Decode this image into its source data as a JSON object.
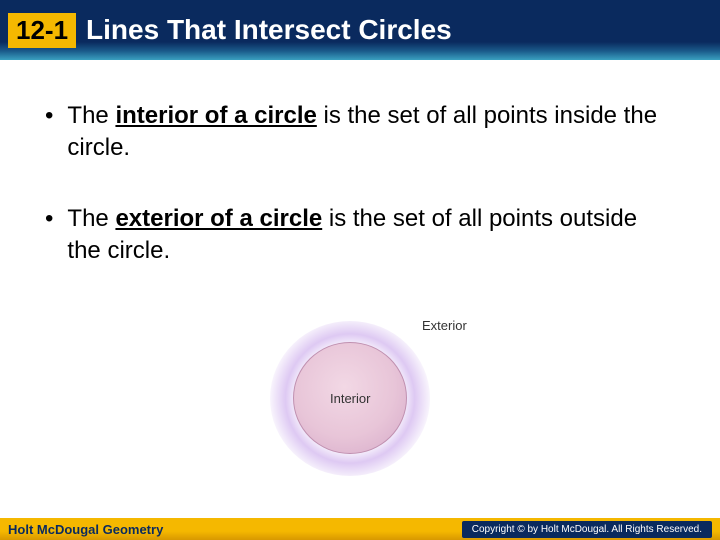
{
  "header": {
    "section_number": "12-1",
    "title": "Lines That Intersect Circles",
    "bg_top": "#0a2a5e",
    "bg_bottom": "#3aa0c0",
    "badge_bg": "#f5b800",
    "title_color": "#ffffff"
  },
  "bullets": [
    {
      "prefix": "The ",
      "term": "interior of a circle",
      "suffix": " is the set of all points inside the circle."
    },
    {
      "prefix": "The ",
      "term": "exterior of a circle",
      "suffix": " is the set of all points outside the circle."
    }
  ],
  "diagram": {
    "interior_label": "Interior",
    "exterior_label": "Exterior",
    "circle_fill": "#e8c5d8",
    "glow_color": "rgba(160,100,220,0.35)"
  },
  "footer": {
    "left": "Holt McDougal Geometry",
    "right": "Copyright © by Holt McDougal. All Rights Reserved.",
    "bg": "#f5b800",
    "left_color": "#0a2a5e",
    "right_bg": "#0a2a5e"
  }
}
